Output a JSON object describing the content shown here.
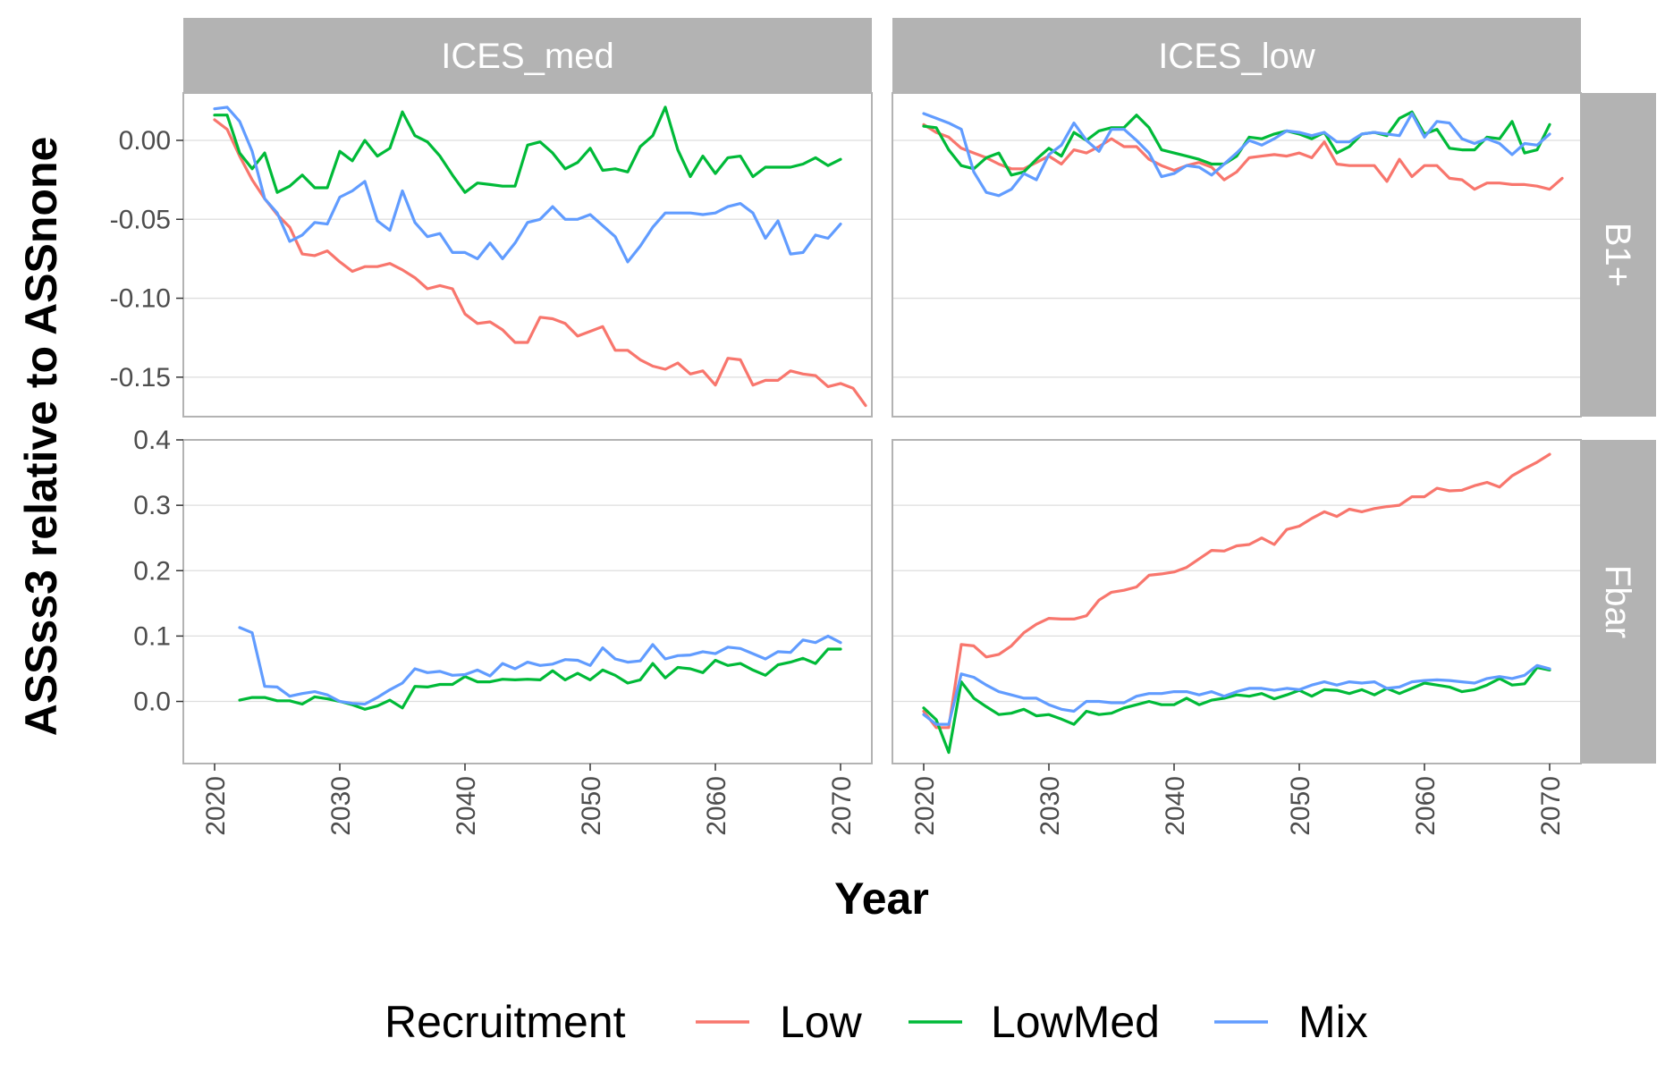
{
  "chart_data": {
    "type": "line",
    "xlabel": "Year",
    "ylabel": "ASSss3 relative to ASSnone",
    "x_ticks": [
      2020,
      2030,
      2040,
      2050,
      2060,
      2070
    ],
    "columns": [
      "ICES_med",
      "ICES_low"
    ],
    "rows": [
      {
        "label": "B1+",
        "ylim": [
          -0.175,
          0.03
        ],
        "ticks": [
          0.0,
          -0.05,
          -0.1,
          -0.15
        ],
        "tick_labels": [
          "0.00",
          "-0.05",
          "-0.10",
          "-0.15"
        ]
      },
      {
        "label": "Fbar",
        "ylim": [
          -0.095,
          0.4
        ],
        "ticks": [
          0.0,
          0.1,
          0.2,
          0.3,
          0.4
        ],
        "tick_labels": [
          "0.0",
          "0.1",
          "0.2",
          "0.3",
          "0.4"
        ]
      }
    ],
    "xlim": [
      2017.5,
      2072.5
    ],
    "legend": {
      "title": "Recruitment",
      "position": "bottom"
    },
    "series_colors": {
      "Low": "#f8766d",
      "LowMed": "#00ba38",
      "Mix": "#619cff"
    },
    "panels": [
      {
        "column": "ICES_med",
        "row": "B1+",
        "series": [
          {
            "name": "Low",
            "x_start": 2020,
            "values": [
              0.013,
              0.007,
              -0.01,
              -0.025,
              -0.037,
              -0.047,
              -0.055,
              -0.072,
              -0.073,
              -0.07,
              -0.077,
              -0.083,
              -0.08,
              -0.08,
              -0.078,
              -0.082,
              -0.087,
              -0.094,
              -0.092,
              -0.094,
              -0.11,
              -0.116,
              -0.115,
              -0.12,
              -0.128,
              -0.128,
              -0.112,
              -0.113,
              -0.116,
              -0.124,
              -0.121,
              -0.118,
              -0.133,
              -0.133,
              -0.139,
              -0.143,
              -0.145,
              -0.141,
              -0.148,
              -0.146,
              -0.155,
              -0.138,
              -0.139,
              -0.155,
              -0.152,
              -0.152,
              -0.146,
              -0.148,
              -0.149,
              -0.156,
              -0.154,
              -0.157,
              -0.168
            ]
          },
          {
            "name": "LowMed",
            "x_start": 2020,
            "values": [
              0.016,
              0.016,
              -0.008,
              -0.018,
              -0.008,
              -0.033,
              -0.029,
              -0.022,
              -0.03,
              -0.03,
              -0.007,
              -0.013,
              0.0,
              -0.01,
              -0.005,
              0.018,
              0.003,
              -0.001,
              -0.01,
              -0.022,
              -0.033,
              -0.027,
              -0.028,
              -0.029,
              -0.029,
              -0.003,
              -0.001,
              -0.008,
              -0.018,
              -0.014,
              -0.005,
              -0.019,
              -0.018,
              -0.02,
              -0.004,
              0.003,
              0.021,
              -0.006,
              -0.023,
              -0.01,
              -0.021,
              -0.011,
              -0.01,
              -0.023,
              -0.017,
              -0.017,
              -0.017,
              -0.015,
              -0.011,
              -0.016,
              -0.012
            ]
          },
          {
            "name": "Mix",
            "x_start": 2020,
            "values": [
              0.02,
              0.021,
              0.012,
              -0.007,
              -0.037,
              -0.046,
              -0.064,
              -0.06,
              -0.052,
              -0.053,
              -0.036,
              -0.032,
              -0.026,
              -0.051,
              -0.057,
              -0.032,
              -0.052,
              -0.061,
              -0.059,
              -0.071,
              -0.071,
              -0.075,
              -0.065,
              -0.075,
              -0.065,
              -0.052,
              -0.05,
              -0.042,
              -0.05,
              -0.05,
              -0.047,
              -0.054,
              -0.061,
              -0.077,
              -0.067,
              -0.055,
              -0.046,
              -0.046,
              -0.046,
              -0.047,
              -0.046,
              -0.042,
              -0.04,
              -0.046,
              -0.062,
              -0.051,
              -0.072,
              -0.071,
              -0.06,
              -0.062,
              -0.053
            ]
          }
        ]
      },
      {
        "column": "ICES_low",
        "row": "B1+",
        "series": [
          {
            "name": "Low",
            "x_start": 2020,
            "values": [
              0.01,
              0.005,
              0.002,
              -0.005,
              -0.008,
              -0.011,
              -0.015,
              -0.018,
              -0.018,
              -0.014,
              -0.01,
              -0.015,
              -0.006,
              -0.008,
              -0.004,
              0.001,
              -0.004,
              -0.004,
              -0.012,
              -0.016,
              -0.019,
              -0.016,
              -0.014,
              -0.017,
              -0.025,
              -0.02,
              -0.011,
              -0.01,
              -0.009,
              -0.01,
              -0.008,
              -0.011,
              -0.001,
              -0.015,
              -0.016,
              -0.016,
              -0.016,
              -0.026,
              -0.012,
              -0.023,
              -0.016,
              -0.016,
              -0.024,
              -0.025,
              -0.031,
              -0.027,
              -0.027,
              -0.028,
              -0.028,
              -0.029,
              -0.031,
              -0.024
            ]
          },
          {
            "name": "LowMed",
            "x_start": 2020,
            "values": [
              0.009,
              0.008,
              -0.006,
              -0.016,
              -0.018,
              -0.011,
              -0.008,
              -0.022,
              -0.02,
              -0.012,
              -0.005,
              -0.01,
              0.005,
              0.0,
              0.006,
              0.008,
              0.008,
              0.016,
              0.008,
              -0.006,
              -0.008,
              -0.01,
              -0.012,
              -0.015,
              -0.015,
              -0.01,
              0.002,
              0.001,
              0.004,
              0.006,
              0.004,
              0.001,
              0.005,
              -0.008,
              -0.004,
              0.004,
              0.005,
              0.003,
              0.014,
              0.018,
              0.004,
              0.007,
              -0.005,
              -0.006,
              -0.006,
              0.002,
              0.001,
              0.012,
              -0.008,
              -0.006,
              0.01
            ]
          },
          {
            "name": "Mix",
            "x_start": 2020,
            "values": [
              0.017,
              0.014,
              0.011,
              0.007,
              -0.02,
              -0.033,
              -0.035,
              -0.031,
              -0.021,
              -0.025,
              -0.009,
              -0.003,
              0.011,
              0.0,
              -0.007,
              0.007,
              0.007,
              0.0,
              -0.008,
              -0.023,
              -0.021,
              -0.016,
              -0.017,
              -0.022,
              -0.015,
              -0.008,
              0.0,
              -0.003,
              0.001,
              0.006,
              0.005,
              0.003,
              0.005,
              -0.001,
              -0.001,
              0.004,
              0.005,
              0.004,
              0.003,
              0.017,
              0.002,
              0.012,
              0.011,
              0.001,
              -0.002,
              0.001,
              -0.002,
              -0.009,
              -0.002,
              -0.003,
              0.004
            ]
          }
        ]
      },
      {
        "column": "ICES_med",
        "row": "Fbar",
        "series": [
          {
            "name": "Low",
            "x_start": 2022,
            "values": []
          },
          {
            "name": "LowMed",
            "x_start": 2022,
            "values": [
              0.002,
              0.006,
              0.006,
              0.001,
              0.001,
              -0.004,
              0.007,
              0.004,
              0.0,
              -0.005,
              -0.012,
              -0.007,
              0.002,
              -0.01,
              0.023,
              0.022,
              0.026,
              0.026,
              0.038,
              0.03,
              0.03,
              0.034,
              0.033,
              0.034,
              0.033,
              0.047,
              0.033,
              0.043,
              0.033,
              0.048,
              0.04,
              0.028,
              0.033,
              0.058,
              0.036,
              0.052,
              0.05,
              0.044,
              0.063,
              0.055,
              0.058,
              0.048,
              0.04,
              0.056,
              0.06,
              0.066,
              0.058,
              0.08,
              0.08
            ]
          },
          {
            "name": "Mix",
            "x_start": 2022,
            "values": [
              0.113,
              0.105,
              0.023,
              0.022,
              0.008,
              0.012,
              0.015,
              0.01,
              0.0,
              -0.003,
              -0.004,
              0.006,
              0.018,
              0.028,
              0.05,
              0.044,
              0.046,
              0.04,
              0.041,
              0.048,
              0.039,
              0.058,
              0.05,
              0.06,
              0.055,
              0.057,
              0.064,
              0.063,
              0.055,
              0.082,
              0.065,
              0.06,
              0.062,
              0.087,
              0.065,
              0.07,
              0.071,
              0.076,
              0.073,
              0.083,
              0.081,
              0.073,
              0.065,
              0.076,
              0.075,
              0.094,
              0.09,
              0.1,
              0.09
            ]
          }
        ]
      },
      {
        "column": "ICES_low",
        "row": "Fbar",
        "series": [
          {
            "name": "Low",
            "x_start": 2020,
            "values": [
              -0.015,
              -0.04,
              -0.04,
              0.087,
              0.085,
              0.068,
              0.072,
              0.085,
              0.105,
              0.118,
              0.127,
              0.126,
              0.126,
              0.131,
              0.155,
              0.167,
              0.17,
              0.175,
              0.193,
              0.195,
              0.198,
              0.205,
              0.218,
              0.231,
              0.23,
              0.238,
              0.24,
              0.25,
              0.24,
              0.263,
              0.268,
              0.28,
              0.29,
              0.283,
              0.294,
              0.29,
              0.295,
              0.298,
              0.3,
              0.313,
              0.313,
              0.326,
              0.322,
              0.323,
              0.33,
              0.335,
              0.328,
              0.345,
              0.356,
              0.366,
              0.378
            ]
          },
          {
            "name": "LowMed",
            "x_start": 2020,
            "values": [
              -0.01,
              -0.028,
              -0.078,
              0.03,
              0.005,
              -0.008,
              -0.02,
              -0.018,
              -0.012,
              -0.022,
              -0.02,
              -0.027,
              -0.035,
              -0.015,
              -0.02,
              -0.018,
              -0.01,
              -0.005,
              0.0,
              -0.005,
              -0.005,
              0.005,
              -0.005,
              0.002,
              0.005,
              0.01,
              0.008,
              0.012,
              0.004,
              0.01,
              0.017,
              0.008,
              0.018,
              0.017,
              0.012,
              0.018,
              0.01,
              0.02,
              0.012,
              0.02,
              0.028,
              0.025,
              0.022,
              0.015,
              0.018,
              0.025,
              0.035,
              0.025,
              0.027,
              0.052,
              0.048
            ]
          },
          {
            "name": "Mix",
            "x_start": 2020,
            "values": [
              -0.02,
              -0.035,
              -0.035,
              0.042,
              0.037,
              0.025,
              0.015,
              0.01,
              0.005,
              0.005,
              -0.005,
              -0.012,
              -0.015,
              0.0,
              0.0,
              -0.002,
              -0.002,
              0.008,
              0.012,
              0.012,
              0.015,
              0.015,
              0.01,
              0.015,
              0.008,
              0.015,
              0.02,
              0.02,
              0.017,
              0.02,
              0.018,
              0.025,
              0.03,
              0.025,
              0.03,
              0.028,
              0.03,
              0.02,
              0.022,
              0.03,
              0.032,
              0.033,
              0.032,
              0.03,
              0.028,
              0.035,
              0.038,
              0.035,
              0.04,
              0.055,
              0.05
            ]
          }
        ]
      }
    ]
  }
}
